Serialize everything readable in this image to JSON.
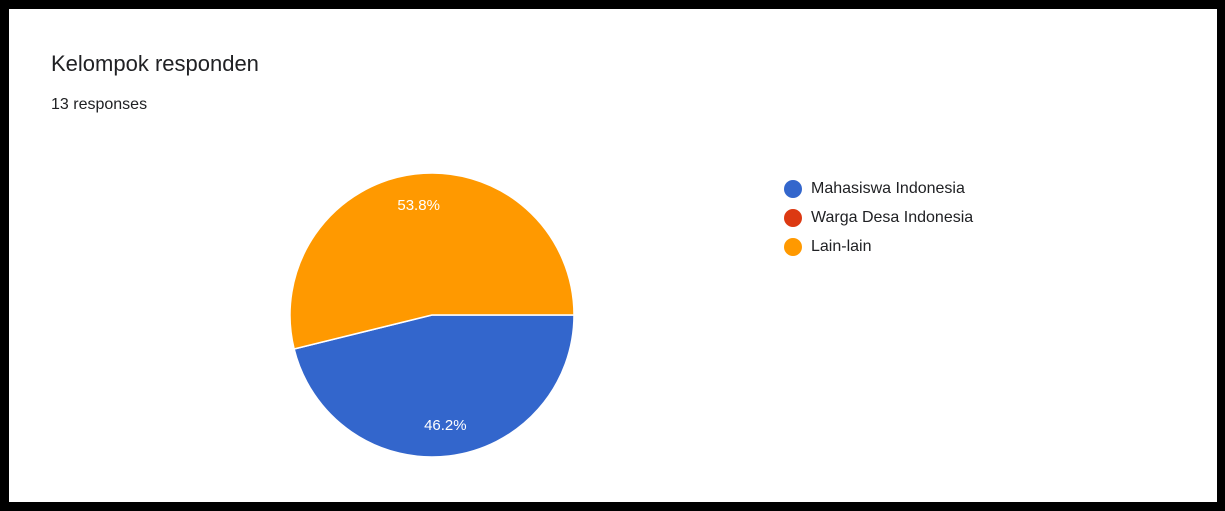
{
  "header": {
    "title": "Kelompok responden",
    "responses": "13 responses"
  },
  "chart_data": {
    "type": "pie",
    "title": "Kelompok responden",
    "total_responses": 13,
    "legend_position": "right",
    "categories": [
      "Mahasiswa Indonesia",
      "Warga Desa Indonesia",
      "Lain-lain"
    ],
    "values": [
      6,
      0,
      7
    ],
    "percent_labels": [
      "46.2%",
      "",
      "53.8%"
    ],
    "colors": [
      "#3366cc",
      "#dc3912",
      "#ff9900"
    ]
  }
}
